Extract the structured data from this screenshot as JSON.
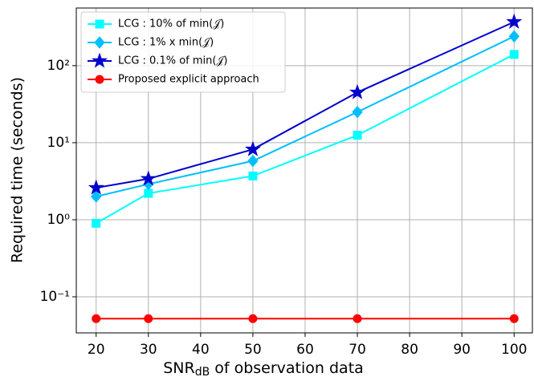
{
  "chart_data": {
    "type": "line",
    "xlabel": [
      "SNR",
      "dB",
      " of observation data"
    ],
    "ylabel": "Required time (seconds)",
    "x": [
      20,
      30,
      50,
      70,
      100
    ],
    "series": [
      {
        "name": "LCG : 10% of min(𝒥)",
        "color": "#00ffff",
        "marker": "square",
        "values": [
          0.9,
          2.2,
          3.7,
          12.5,
          140
        ]
      },
      {
        "name": "LCG : 1% x min(𝒥)",
        "color": "#00bfff",
        "marker": "diamond",
        "values": [
          2.0,
          2.9,
          5.8,
          25,
          240
        ]
      },
      {
        "name": "LCG : 0.1% of min(𝒥)",
        "color": "#0000cd",
        "marker": "star",
        "values": [
          2.6,
          3.4,
          8.2,
          45,
          370
        ]
      },
      {
        "name": "Proposed explicit approach",
        "color": "#ff0000",
        "marker": "circle",
        "values": [
          0.052,
          0.052,
          0.052,
          0.052,
          0.052
        ]
      }
    ],
    "xlim": [
      16.2,
      103.5
    ],
    "xticks": [
      20,
      30,
      40,
      50,
      60,
      70,
      80,
      90,
      100
    ],
    "ylim": [
      0.034,
      560
    ],
    "yscale": "log",
    "yticks": [
      {
        "value": 0.1,
        "label": "10⁻¹"
      },
      {
        "value": 1,
        "label": "10⁰"
      },
      {
        "value": 10,
        "label": "10¹"
      },
      {
        "value": 100,
        "label": "10²"
      }
    ],
    "grid": true,
    "legend": "upper left"
  }
}
